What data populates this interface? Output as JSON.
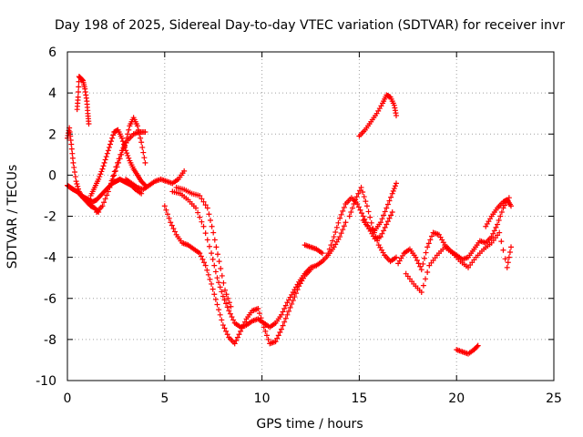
{
  "chart_data": {
    "type": "scatter",
    "title": "Day 198 of 2025, Sidereal Day-to-day VTEC variation (SDTVAR) for receiver invr",
    "xlabel": "GPS time / hours",
    "ylabel": "SDTVAR / TECUs",
    "xlim": [
      0,
      25
    ],
    "ylim": [
      -10,
      6
    ],
    "xticks": [
      0,
      5,
      10,
      15,
      20,
      25
    ],
    "yticks": [
      -10,
      -8,
      -6,
      -4,
      -2,
      0,
      2,
      4,
      6
    ],
    "grid": true,
    "marker": "plus",
    "color": "#ff0000",
    "series": [
      {
        "name": "arc-1",
        "x": [
          0.0,
          0.1,
          0.2,
          0.3,
          0.45,
          0.6,
          0.8,
          1.0,
          1.2,
          1.4,
          1.6
        ],
        "y": [
          1.8,
          2.3,
          1.5,
          0.6,
          -0.3,
          -0.8,
          -1.1,
          -1.3,
          -1.5,
          -1.6,
          -1.8
        ]
      },
      {
        "name": "arc-2",
        "x": [
          0.0,
          0.15,
          0.3,
          0.5,
          0.7,
          0.9,
          1.1,
          1.3,
          1.5,
          1.7,
          1.9,
          2.1,
          2.3,
          2.5,
          2.7,
          2.9,
          3.1,
          3.3,
          3.5,
          3.8
        ],
        "y": [
          -0.5,
          -0.6,
          -0.7,
          -0.8,
          -1.0,
          -1.1,
          -1.2,
          -1.3,
          -1.2,
          -1.0,
          -0.8,
          -0.6,
          -0.4,
          -0.3,
          -0.2,
          -0.3,
          -0.4,
          -0.5,
          -0.7,
          -0.9
        ]
      },
      {
        "name": "arc-3",
        "x": [
          0.5,
          0.55,
          0.6,
          0.7,
          0.8,
          0.9,
          1.0,
          1.05,
          1.1
        ],
        "y": [
          3.2,
          3.8,
          4.8,
          4.7,
          4.6,
          4.2,
          3.6,
          3.0,
          2.5
        ]
      },
      {
        "name": "arc-4",
        "x": [
          1.2,
          1.4,
          1.6,
          1.8,
          2.0,
          2.2,
          2.4,
          2.6,
          2.8,
          3.0,
          3.2,
          3.4,
          3.6,
          3.8,
          4.0
        ],
        "y": [
          -1.0,
          -0.6,
          -0.2,
          0.3,
          0.9,
          1.5,
          2.1,
          2.2,
          1.8,
          1.2,
          0.7,
          0.3,
          0.0,
          -0.3,
          -0.5
        ]
      },
      {
        "name": "arc-5",
        "x": [
          1.5,
          1.8,
          2.1,
          2.4,
          2.7,
          3.0,
          3.2,
          3.4,
          3.6,
          3.8,
          4.0
        ],
        "y": [
          -1.8,
          -1.5,
          -0.8,
          0.0,
          0.8,
          1.6,
          2.4,
          2.8,
          2.4,
          1.6,
          0.6
        ]
      },
      {
        "name": "arc-6",
        "x": [
          2.2,
          2.5,
          2.8,
          3.1,
          3.4,
          3.7,
          4.0
        ],
        "y": [
          -0.5,
          0.4,
          1.2,
          1.7,
          2.0,
          2.1,
          2.1
        ]
      },
      {
        "name": "arc-7",
        "x": [
          3.0,
          3.3,
          3.6,
          3.9,
          4.2,
          4.5,
          4.8,
          5.1,
          5.4,
          5.7,
          6.0
        ],
        "y": [
          -0.2,
          -0.4,
          -0.6,
          -0.7,
          -0.5,
          -0.3,
          -0.2,
          -0.3,
          -0.4,
          -0.2,
          0.2
        ]
      },
      {
        "name": "arc-8",
        "x": [
          5.0,
          5.3,
          5.6,
          5.9,
          6.2,
          6.5,
          6.8,
          7.1,
          7.4,
          7.7,
          8.0,
          8.3,
          8.6,
          8.9,
          9.2,
          9.5,
          9.8,
          10.1,
          10.4,
          10.7,
          11.0,
          11.3,
          11.6,
          11.9,
          12.2,
          12.5
        ],
        "y": [
          -1.5,
          -2.3,
          -2.9,
          -3.3,
          -3.4,
          -3.6,
          -3.8,
          -4.4,
          -5.3,
          -6.3,
          -7.3,
          -7.9,
          -8.2,
          -7.6,
          -7.0,
          -6.6,
          -6.5,
          -7.4,
          -8.2,
          -8.1,
          -7.5,
          -6.8,
          -6.1,
          -5.4,
          -4.9,
          -4.6
        ]
      },
      {
        "name": "arc-9",
        "x": [
          5.4,
          5.8,
          6.2,
          6.6,
          7.0,
          7.4,
          7.7,
          8.0,
          8.3,
          8.6,
          8.9,
          9.2,
          9.5,
          9.8,
          10.1,
          10.4,
          10.7,
          11.0,
          11.3,
          11.6,
          11.9,
          12.2,
          12.5,
          12.8,
          13.1,
          13.4,
          13.7,
          14.0,
          14.3
        ],
        "y": [
          -0.8,
          -0.9,
          -1.2,
          -1.6,
          -2.5,
          -3.8,
          -5.0,
          -5.9,
          -6.6,
          -7.2,
          -7.4,
          -7.3,
          -7.1,
          -7.0,
          -7.2,
          -7.4,
          -7.2,
          -6.8,
          -6.2,
          -5.7,
          -5.2,
          -4.8,
          -4.5,
          -4.4,
          -4.2,
          -3.9,
          -3.5,
          -3.0,
          -2.3
        ]
      },
      {
        "name": "arc-10",
        "x": [
          5.6,
          6.0,
          6.4,
          6.8,
          7.2,
          7.5,
          7.8,
          8.1,
          8.4
        ],
        "y": [
          -0.6,
          -0.7,
          -0.9,
          -1.0,
          -1.6,
          -2.8,
          -4.2,
          -5.6,
          -6.4
        ]
      },
      {
        "name": "arc-11",
        "x": [
          12.2,
          12.5,
          12.8,
          13.1
        ],
        "y": [
          -3.4,
          -3.5,
          -3.6,
          -3.8
        ]
      },
      {
        "name": "arc-12",
        "x": [
          13.4,
          13.7,
          14.0,
          14.3,
          14.6,
          14.9,
          15.2,
          15.5,
          15.8,
          16.1,
          16.4,
          16.7
        ],
        "y": [
          -3.8,
          -3.0,
          -2.1,
          -1.4,
          -1.1,
          -1.4,
          -2.0,
          -2.6,
          -3.1,
          -3.0,
          -2.4,
          -1.8
        ]
      },
      {
        "name": "arc-13",
        "x": [
          14.5,
          14.8,
          15.1,
          15.4,
          15.7,
          16.0,
          16.3,
          16.6,
          16.9
        ],
        "y": [
          -2.0,
          -1.2,
          -0.6,
          -1.5,
          -2.6,
          -3.4,
          -3.9,
          -4.2,
          -4.0
        ]
      },
      {
        "name": "arc-14",
        "x": [
          15.2,
          15.5,
          15.8,
          16.1,
          16.4,
          16.7,
          16.9
        ],
        "y": [
          -2.2,
          -2.6,
          -2.7,
          -2.3,
          -1.6,
          -0.9,
          -0.4
        ]
      },
      {
        "name": "arc-15",
        "x": [
          15.0,
          15.3,
          15.6,
          15.9,
          16.2,
          16.4,
          16.6,
          16.8,
          16.9
        ],
        "y": [
          1.9,
          2.2,
          2.6,
          3.0,
          3.5,
          3.9,
          3.8,
          3.4,
          2.9
        ]
      },
      {
        "name": "arc-16",
        "x": [
          17.0,
          17.3,
          17.6,
          17.9,
          18.2,
          18.5,
          18.8,
          19.1,
          19.4,
          19.7,
          20.0,
          20.3,
          20.6,
          20.9,
          21.2,
          21.5,
          21.8,
          22.1,
          22.4,
          22.7
        ],
        "y": [
          -4.3,
          -3.8,
          -3.6,
          -4.0,
          -4.6,
          -3.5,
          -2.8,
          -2.9,
          -3.4,
          -3.7,
          -3.9,
          -4.1,
          -4.0,
          -3.6,
          -3.2,
          -3.3,
          -3.0,
          -2.4,
          -1.6,
          -1.1
        ]
      },
      {
        "name": "arc-17",
        "x": [
          17.4,
          17.8,
          18.2,
          18.6,
          19.0,
          19.4,
          19.8,
          20.2,
          20.6,
          21.0,
          21.4,
          21.8,
          22.2,
          22.6,
          22.8
        ],
        "y": [
          -4.8,
          -5.3,
          -5.7,
          -4.4,
          -3.9,
          -3.5,
          -3.8,
          -4.2,
          -4.5,
          -4.0,
          -3.6,
          -3.3,
          -2.8,
          -4.5,
          -3.5
        ]
      },
      {
        "name": "arc-18",
        "x": [
          20.0,
          20.3,
          20.6,
          20.9,
          21.1
        ],
        "y": [
          -8.5,
          -8.6,
          -8.7,
          -8.5,
          -8.3
        ]
      },
      {
        "name": "arc-19",
        "x": [
          21.5,
          21.8,
          22.1,
          22.4,
          22.6,
          22.8
        ],
        "y": [
          -2.5,
          -2.0,
          -1.6,
          -1.3,
          -1.2,
          -1.5
        ]
      }
    ]
  }
}
